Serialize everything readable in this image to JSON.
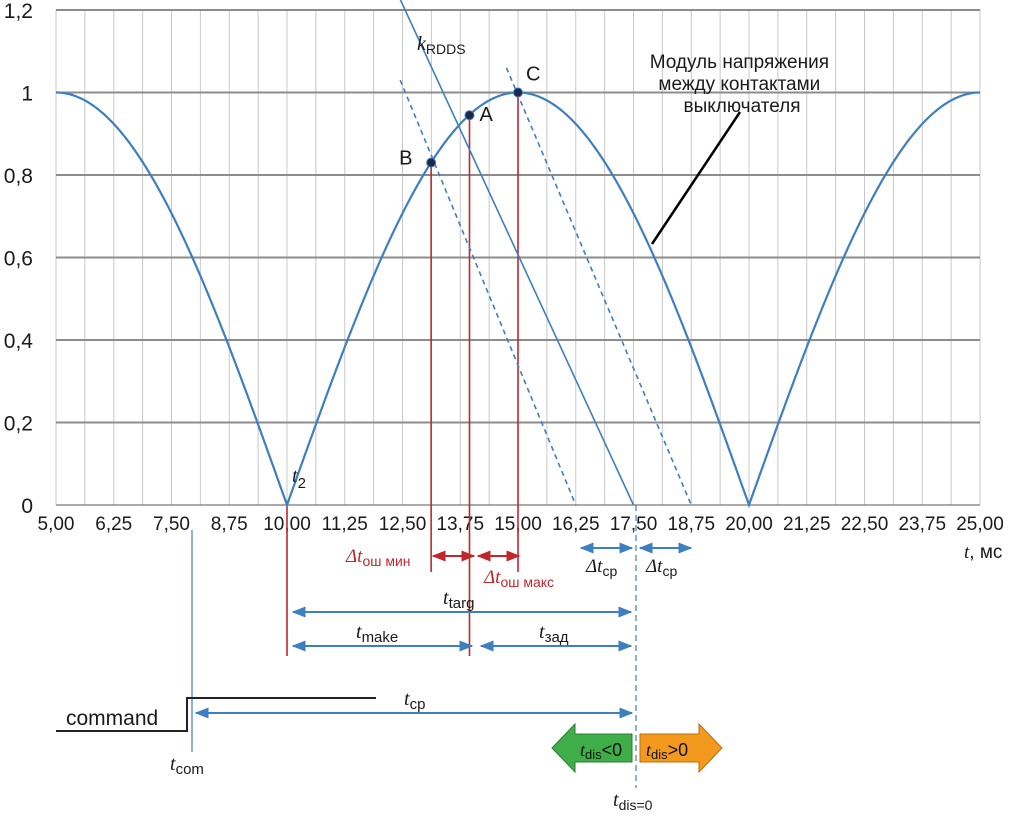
{
  "chart_data": {
    "type": "line",
    "xlabel": "t, мс",
    "xlabel_var": "t",
    "xlabel_unit": ", мс",
    "xlim": [
      5.0,
      25.0
    ],
    "ylim": [
      0,
      1.2
    ],
    "grid": true,
    "x_tick_labels": [
      "5,00",
      "6,25",
      "7,50",
      "8,75",
      "10,00",
      "11,25",
      "12,50",
      "13,75",
      "15,00",
      "16,25",
      "17,50",
      "18,75",
      "20,00",
      "21,25",
      "22,50",
      "23,75",
      "25,00"
    ],
    "y_ticks": [
      0,
      0.2,
      0.4,
      0.6,
      0.8,
      1.0,
      1.2
    ],
    "y_tick_labels": [
      "0",
      "0,2",
      "0,4",
      "0,6",
      "0,8",
      "1",
      "1,2"
    ],
    "series": [
      {
        "name": "Модуль напряжения между контактами выключателя",
        "formula": "|sin(2*pi*(t-10)/20)|",
        "color": "#3d7fc1"
      }
    ],
    "curve_label": [
      "Модуль напряжения",
      "между контактами",
      "выключателя"
    ],
    "points": [
      {
        "label": "A",
        "x": 13.95,
        "y": 0.945
      },
      {
        "label": "B",
        "x": 13.12,
        "y": 0.83
      },
      {
        "label": "C",
        "x": 15.0,
        "y": 1.0
      }
    ],
    "slope_lines": [
      {
        "label": "kRDDS",
        "from": [
          12.0,
          1.335
        ],
        "to": [
          17.5,
          0.0
        ],
        "style": "solid"
      },
      {
        "label": "",
        "from": [
          12.45,
          1.03
        ],
        "to": [
          16.25,
          0.0
        ],
        "style": "dashed"
      },
      {
        "label": "",
        "from": [
          14.75,
          1.06
        ],
        "to": [
          18.75,
          0.0
        ],
        "style": "dashed"
      }
    ],
    "annotations": {
      "k_main": "k",
      "k_sub": "RDDS",
      "t2_main": "t",
      "t2_sub": "2",
      "dt_err_min_main": "Δt",
      "dt_err_min_sub": "ош мин",
      "dt_err_max_main": "Δt",
      "dt_err_max_sub": "ош макс",
      "dt_cp_main": "Δt",
      "dt_cp_sub": "cp",
      "t_targ_main": "t",
      "t_targ_sub": "targ",
      "t_make_main": "t",
      "t_make_sub": "make",
      "t_zad_main": "t",
      "t_zad_sub": "зад",
      "t_cp_main": "t",
      "t_cp_sub": "cp",
      "command": "command",
      "t_com_main": "t",
      "t_com_sub": "com",
      "t_dis0_main": "t",
      "t_dis0_sub": "dis=0",
      "dis_neg_main": "t",
      "dis_neg_sub": "dis",
      "dis_neg_rel": "<0",
      "dis_pos_main": "t",
      "dis_pos_sub": "dis",
      "dis_pos_rel": ">0"
    },
    "colors": {
      "curve": "#3d7fc1",
      "grid_major": "#8c8c8c",
      "grid_minor": "#c8c8c8",
      "red": "#c0272d",
      "arrow_blue": "#3d7fc1",
      "point": "#1c2a4a",
      "green_arrow": "#3fae49",
      "orange_arrow": "#f39a1e"
    }
  }
}
